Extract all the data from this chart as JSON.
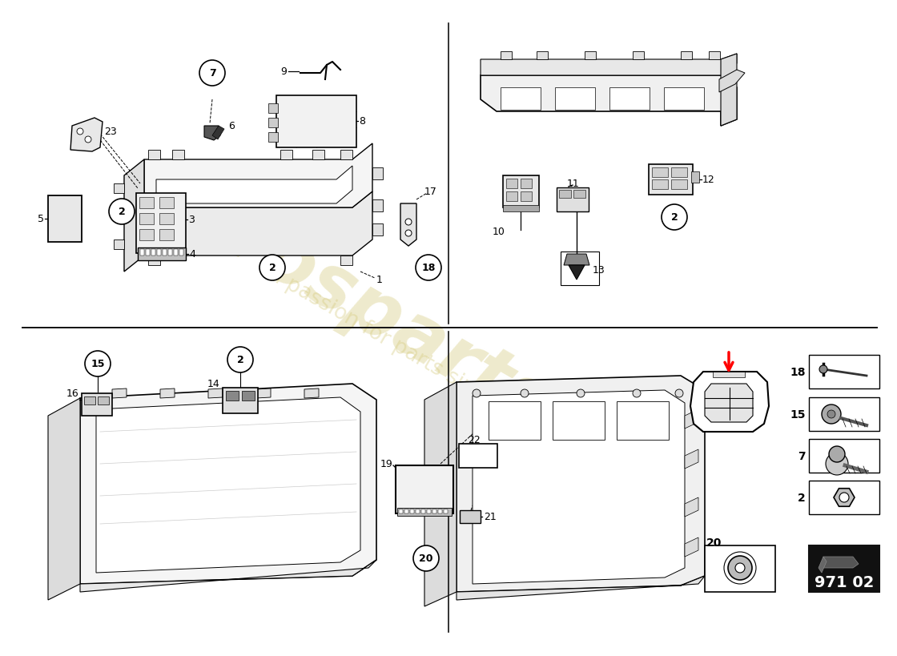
{
  "background_color": "#ffffff",
  "watermark_line1": "eurosparts",
  "watermark_line2": "a passion for parts since 1985",
  "watermark_color": "#d4c97a",
  "part_number": "971 02",
  "divider_color": "#222222",
  "label_fontsize": 9,
  "circle_fontsize": 9
}
